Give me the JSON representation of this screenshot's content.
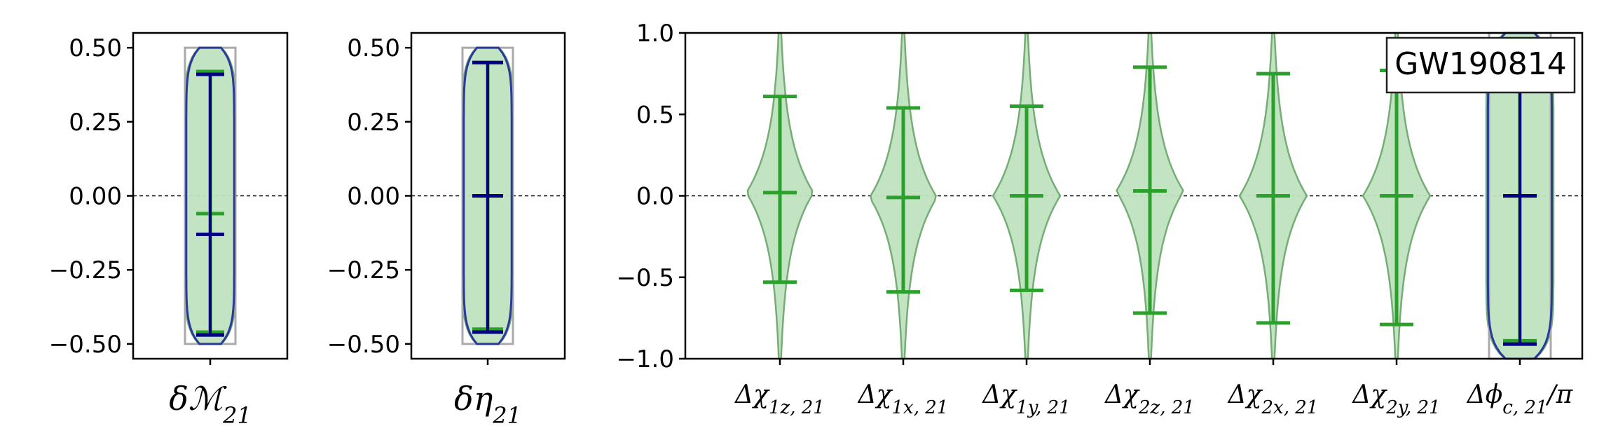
{
  "colors": {
    "violin_fill": "#bfe3bf",
    "violin_edge": "#6fa86f",
    "error_green": "#2ca02c",
    "error_navy": "#000080",
    "outline_blue": "#2a3a9a",
    "prior_gray": "#aaaaaa"
  },
  "chart_data": [
    {
      "id": "chirp-mass",
      "type": "violin",
      "xlabel_base": "δℳ",
      "xlabel_sub": "21",
      "ylim": [
        -0.55,
        0.55
      ],
      "yticks": [
        0.5,
        0.25,
        0.0,
        -0.25,
        -0.5
      ],
      "ytick_labels": [
        "0.50",
        "0.25",
        "0.00",
        "−0.25",
        "−0.50"
      ],
      "zero_line": true,
      "violins": [
        {
          "prior_range": [
            -0.5,
            0.5
          ],
          "green": {
            "median": -0.06,
            "lower": -0.46,
            "upper": 0.42
          },
          "navy": {
            "median": -0.13,
            "lower": -0.47,
            "upper": 0.41
          },
          "outline_range": [
            -0.5,
            0.5
          ]
        }
      ]
    },
    {
      "id": "eta",
      "type": "violin",
      "xlabel_base": "δη",
      "xlabel_sub": "21",
      "ylim": [
        -0.55,
        0.55
      ],
      "yticks": [
        0.5,
        0.25,
        0.0,
        -0.25,
        -0.5
      ],
      "ytick_labels": [
        "0.50",
        "0.25",
        "0.00",
        "−0.25",
        "−0.50"
      ],
      "zero_line": true,
      "violins": [
        {
          "prior_range": [
            -0.5,
            0.5
          ],
          "green": {
            "median": 0.0,
            "lower": -0.45,
            "upper": 0.45
          },
          "navy": {
            "median": 0.0,
            "lower": -0.46,
            "upper": 0.45
          },
          "outline_range": [
            -0.5,
            0.5
          ]
        }
      ]
    },
    {
      "id": "spins-phase",
      "type": "violin",
      "legend": "GW190814",
      "legend_position": "top-right",
      "ylim": [
        -1.0,
        1.0
      ],
      "yticks": [
        1.0,
        0.5,
        0.0,
        -0.5,
        -1.0
      ],
      "ytick_labels": [
        "1.0",
        "0.5",
        "0.0",
        "−0.5",
        "−1.0"
      ],
      "zero_line": true,
      "categories": [
        {
          "base": "Δχ",
          "sub": "1z, 21",
          "suffix": ""
        },
        {
          "base": "Δχ",
          "sub": "1x, 21",
          "suffix": ""
        },
        {
          "base": "Δχ",
          "sub": "1y, 21",
          "suffix": ""
        },
        {
          "base": "Δχ",
          "sub": "2z, 21",
          "suffix": ""
        },
        {
          "base": "Δχ",
          "sub": "2x, 21",
          "suffix": ""
        },
        {
          "base": "Δχ",
          "sub": "2y, 21",
          "suffix": ""
        },
        {
          "base": "Δϕ",
          "sub": "c, 21",
          "suffix": "/π"
        }
      ],
      "violins": [
        {
          "green": {
            "median": 0.02,
            "lower": -0.53,
            "upper": 0.61
          }
        },
        {
          "green": {
            "median": -0.01,
            "lower": -0.59,
            "upper": 0.54
          }
        },
        {
          "green": {
            "median": 0.0,
            "lower": -0.58,
            "upper": 0.55
          }
        },
        {
          "green": {
            "median": 0.03,
            "lower": -0.72,
            "upper": 0.79
          }
        },
        {
          "green": {
            "median": 0.0,
            "lower": -0.78,
            "upper": 0.75
          }
        },
        {
          "green": {
            "median": 0.0,
            "lower": -0.79,
            "upper": 0.77
          }
        },
        {
          "prior_range": [
            -1.0,
            1.0
          ],
          "green": {
            "median": 0.0,
            "lower": -0.89,
            "upper": 0.92
          },
          "navy": {
            "median": 0.0,
            "lower": -0.91,
            "upper": 0.9
          },
          "outline_range": [
            -1.0,
            1.0
          ]
        }
      ]
    }
  ]
}
